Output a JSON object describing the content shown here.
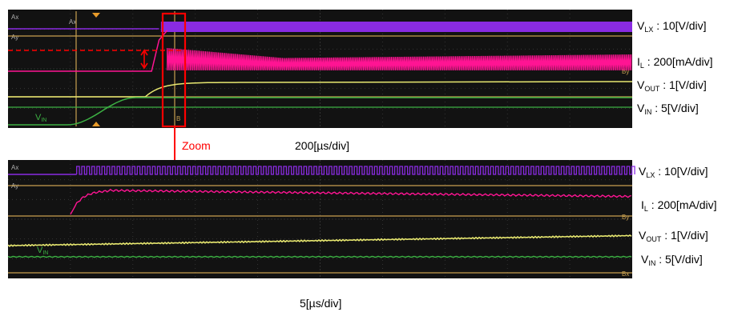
{
  "top": {
    "channel_labels": [
      {
        "main": "V",
        "sub": "LX",
        "value": " : 10[V/div]"
      },
      {
        "main": "I",
        "sub": "L",
        "value": " : 200[mA/div]"
      },
      {
        "main": "V",
        "sub": "OUT",
        "value": " : 1[V/div]"
      },
      {
        "main": "V",
        "sub": "IN",
        "value": " : 5[V/div]"
      }
    ],
    "timebase": "200[µs/div]",
    "vin_main": "V",
    "vin_sub": "IN",
    "zoom_label": "Zoom"
  },
  "bottom": {
    "channel_labels": [
      {
        "main": "V",
        "sub": "LX",
        "value": " : 10[V/div]"
      },
      {
        "main": "I",
        "sub": "L",
        "value": " : 200[mA/div]"
      },
      {
        "main": "V",
        "sub": "OUT",
        "value": " : 1[V/div]"
      },
      {
        "main": "V",
        "sub": "IN",
        "value": " : 5[V/div]"
      }
    ],
    "timebase": "5[µs/div]",
    "vin_main": "V",
    "vin_sub": "IN"
  },
  "colors": {
    "screen_bg": "#121212",
    "grid": "#3a3a3a",
    "vlx": "#8a2be2",
    "il": "#ff1493",
    "vout": "#e8e870",
    "vin": "#3cb043",
    "ref": "#c8a050",
    "zoom": "#ff0000"
  },
  "chart_data": [
    {
      "type": "line",
      "title": "",
      "x_unit": "200[µs/div]",
      "divisions": 10,
      "series": [
        {
          "name": "VLX",
          "scale": "10[V/div]",
          "points": [
            [
              0,
              0
            ],
            [
              2.4,
              0
            ],
            [
              2.45,
              16
            ],
            [
              10,
              16
            ]
          ]
        },
        {
          "name": "IL",
          "scale": "200[mA/div]",
          "points": [
            [
              0,
              0
            ],
            [
              2.3,
              0
            ],
            [
              2.45,
              250
            ],
            [
              2.6,
              330
            ],
            [
              10,
              330
            ]
          ]
        },
        {
          "name": "VOUT",
          "scale": "1[V/div]",
          "points": [
            [
              0,
              0
            ],
            [
              2.2,
              0
            ],
            [
              2.6,
              0.9
            ],
            [
              3.0,
              1.25
            ],
            [
              10,
              1.3
            ]
          ]
        },
        {
          "name": "VIN",
          "scale": "5[V/div]",
          "points": [
            [
              0,
              0
            ],
            [
              0.95,
              0
            ],
            [
              1.5,
              1
            ],
            [
              2.0,
              1.5
            ],
            [
              10,
              1.5
            ]
          ]
        }
      ]
    },
    {
      "type": "line",
      "title": "",
      "x_unit": "5[µs/div]",
      "divisions": 10,
      "series": [
        {
          "name": "VLX",
          "scale": "10[V/div]",
          "points": [
            [
              0,
              0
            ],
            [
              1.1,
              0
            ],
            [
              1.1,
              16
            ],
            [
              10,
              16
            ]
          ]
        },
        {
          "name": "IL",
          "scale": "200[mA/div]",
          "points": [
            [
              1.0,
              0
            ],
            [
              1.15,
              140
            ],
            [
              1.6,
              200
            ],
            [
              2.5,
              230
            ],
            [
              6,
              210
            ],
            [
              10,
              200
            ]
          ]
        },
        {
          "name": "VOUT",
          "scale": "1[V/div]",
          "points": [
            [
              0,
              0.15
            ],
            [
              10,
              0.7
            ]
          ]
        },
        {
          "name": "VIN",
          "scale": "5[V/div]",
          "points": [
            [
              0,
              0.3
            ],
            [
              10,
              0.3
            ]
          ]
        }
      ]
    }
  ]
}
